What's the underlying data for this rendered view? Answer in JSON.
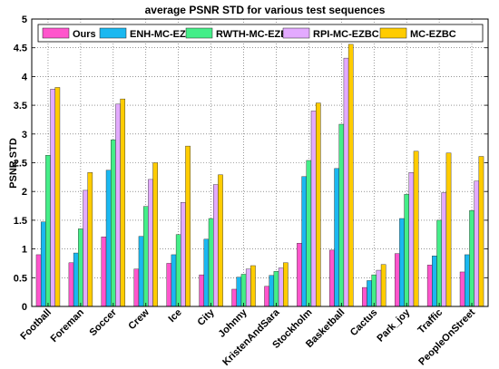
{
  "chart_data": {
    "type": "bar",
    "title": "average PSNR STD for various test sequences",
    "xlabel": "",
    "ylabel": "PSNR STD",
    "ylim": [
      0,
      5
    ],
    "yticks": [
      "0",
      "0.5",
      "1",
      "1.5",
      "2",
      "2.5",
      "3",
      "3.5",
      "4",
      "4.5",
      "5"
    ],
    "grid": true,
    "legend_position": "top",
    "categories": [
      "Football",
      "Foreman",
      "Soccer",
      "Crew",
      "Ice",
      "City",
      "Johnny",
      "KristenAndSara",
      "Stockholm",
      "Basketball",
      "Cactus",
      "Park_joy",
      "Traffic",
      "PeopleOnStreet"
    ],
    "series": [
      {
        "name": "Ours",
        "color": "#ff55cc",
        "values": [
          0.9,
          0.76,
          1.21,
          0.65,
          0.75,
          0.55,
          0.3,
          0.35,
          1.1,
          0.98,
          0.33,
          0.92,
          0.72,
          0.6
        ]
      },
      {
        "name": "ENH-MC-EZBC",
        "color": "#1ab8f0",
        "values": [
          1.47,
          0.93,
          2.37,
          1.22,
          0.9,
          1.17,
          0.51,
          0.54,
          2.26,
          2.4,
          0.45,
          1.53,
          0.88,
          0.9
        ]
      },
      {
        "name": "RWTH-MC-EZBC",
        "color": "#44ee88",
        "values": [
          2.63,
          1.35,
          2.9,
          1.74,
          1.25,
          1.53,
          0.56,
          0.61,
          2.54,
          3.17,
          0.55,
          1.95,
          1.5,
          1.67
        ]
      },
      {
        "name": "RPI-MC-EZBC",
        "color": "#e3aaff",
        "values": [
          3.78,
          2.02,
          3.52,
          2.21,
          1.81,
          2.12,
          0.65,
          0.67,
          3.4,
          4.32,
          0.63,
          2.33,
          1.98,
          2.18
        ]
      },
      {
        "name": "MC-EZBC",
        "color": "#ffcc00",
        "values": [
          3.81,
          2.33,
          3.61,
          2.5,
          2.79,
          2.29,
          0.71,
          0.76,
          3.54,
          4.56,
          0.73,
          2.7,
          2.67,
          2.61
        ]
      }
    ]
  }
}
